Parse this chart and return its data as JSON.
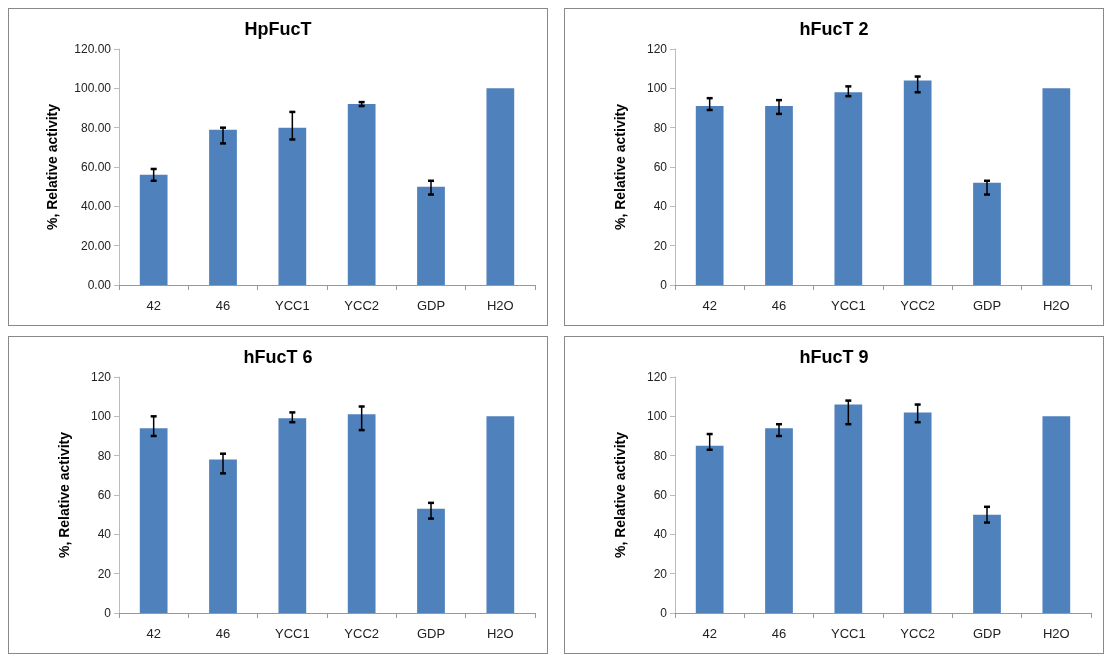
{
  "chart_data": [
    {
      "type": "bar",
      "title": "HpFucT",
      "ylabel": "%, Relative activity",
      "categories": [
        "42",
        "46",
        "YCC1",
        "YCC2",
        "GDP",
        "H2O"
      ],
      "color": "#4f81bd",
      "values": [
        56,
        79,
        80,
        92,
        50,
        100
      ],
      "errors": [
        [
          53,
          59
        ],
        [
          72,
          80
        ],
        [
          74,
          88
        ],
        [
          91,
          93
        ],
        [
          46,
          53
        ],
        null
      ],
      "ylim": [
        0,
        120
      ],
      "yticks": [
        {
          "value": 0,
          "label": "0.00"
        },
        {
          "value": 20,
          "label": "20.00"
        },
        {
          "value": 40,
          "label": "40.00"
        },
        {
          "value": 60,
          "label": "60.00"
        },
        {
          "value": 80,
          "label": "80.00"
        },
        {
          "value": 100,
          "label": "100.00"
        },
        {
          "value": 120,
          "label": "120.00"
        }
      ],
      "grid": false
    },
    {
      "type": "bar",
      "title": "hFucT 2",
      "ylabel": "%, Relative activity",
      "categories": [
        "42",
        "46",
        "YCC1",
        "YCC2",
        "GDP",
        "H2O"
      ],
      "color": "#4f81bd",
      "values": [
        91,
        91,
        98,
        104,
        52,
        100
      ],
      "errors": [
        [
          89,
          95
        ],
        [
          87,
          94
        ],
        [
          96,
          101
        ],
        [
          98,
          106
        ],
        [
          46,
          53
        ],
        null
      ],
      "ylim": [
        0,
        120
      ],
      "yticks": [
        0,
        20,
        40,
        60,
        80,
        100,
        120
      ],
      "grid": false
    },
    {
      "type": "bar",
      "title": "hFucT 6",
      "ylabel": "%, Relative activity",
      "categories": [
        "42",
        "46",
        "YCC1",
        "YCC2",
        "GDP",
        "H2O"
      ],
      "color": "#4f81bd",
      "values": [
        94,
        78,
        99,
        101,
        53,
        100
      ],
      "errors": [
        [
          90,
          100
        ],
        [
          71,
          81
        ],
        [
          97,
          102
        ],
        [
          93,
          105
        ],
        [
          48,
          56
        ],
        null
      ],
      "ylim": [
        0,
        120
      ],
      "yticks": [
        0,
        20,
        40,
        60,
        80,
        100,
        120
      ],
      "grid": false
    },
    {
      "type": "bar",
      "title": "hFucT 9",
      "ylabel": "%, Relative activity",
      "categories": [
        "42",
        "46",
        "YCC1",
        "YCC2",
        "GDP",
        "H2O"
      ],
      "color": "#4f81bd",
      "values": [
        85,
        94,
        106,
        102,
        50,
        100
      ],
      "errors": [
        [
          83,
          91
        ],
        [
          90,
          96
        ],
        [
          96,
          108
        ],
        [
          97,
          106
        ],
        [
          46,
          54
        ],
        null
      ],
      "ylim": [
        0,
        120
      ],
      "yticks": [
        0,
        20,
        40,
        60,
        80,
        100,
        120
      ],
      "grid": false
    }
  ]
}
